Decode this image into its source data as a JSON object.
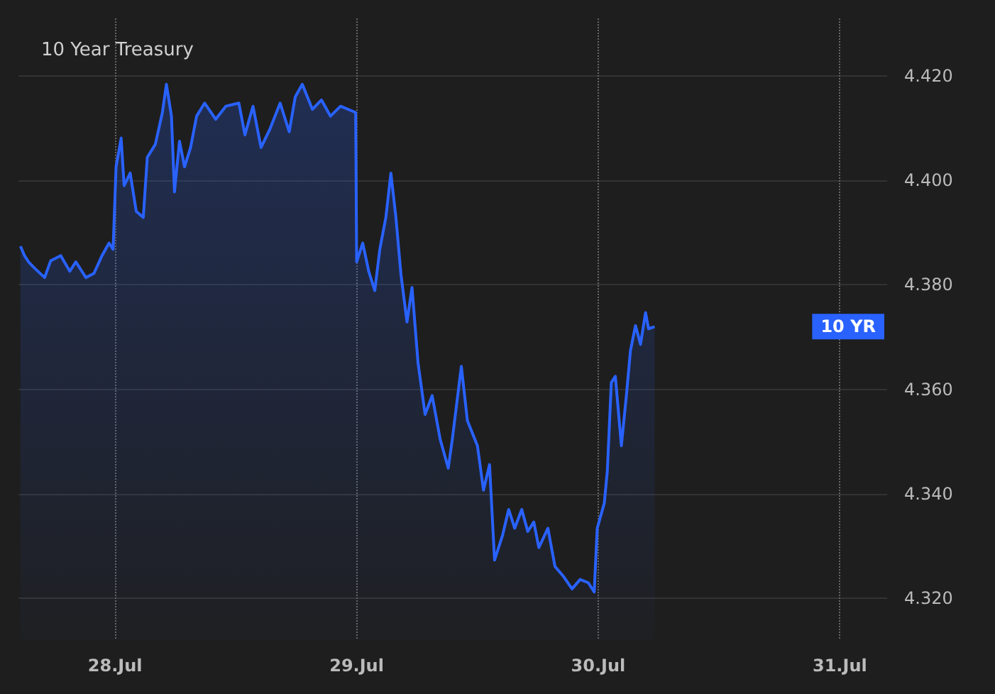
{
  "chart_data": {
    "type": "area",
    "title": "10 Year Treasury",
    "x": [
      "--07-27T14:36",
      "--07-27T15:00",
      "--07-27T15:24",
      "--07-27T16:00",
      "--07-27T17:00",
      "--07-27T17:36",
      "--07-27T18:36",
      "--07-27T19:30",
      "--07-27T20:06",
      "--07-27T21:06",
      "--07-27T21:54",
      "--07-27T22:42",
      "--07-27T23:24",
      "--07-27T23:48",
      "--07-28T00:06",
      "--07-28T00:36",
      "--07-28T00:54",
      "--07-28T01:30",
      "--07-28T02:06",
      "--07-28T02:48",
      "--07-28T03:12",
      "--07-28T04:00",
      "--07-28T04:42",
      "--07-28T05:06",
      "--07-28T05:36",
      "--07-28T05:54",
      "--07-28T06:24",
      "--07-28T06:54",
      "--07-28T07:30",
      "--07-28T08:06",
      "--07-28T08:54",
      "--07-28T10:00",
      "--07-28T11:00",
      "--07-28T12:18",
      "--07-28T12:54",
      "--07-28T13:42",
      "--07-28T14:30",
      "--07-28T15:24",
      "--07-28T16:24",
      "--07-28T17:18",
      "--07-28T17:54",
      "--07-28T18:36",
      "--07-28T19:36",
      "--07-28T20:30",
      "--07-28T21:24",
      "--07-28T22:24",
      "--07-28T23:54",
      "--07-29T00:00",
      "--07-29T00:36",
      "--07-29T01:12",
      "--07-29T01:48",
      "--07-29T02:18",
      "--07-29T02:54",
      "--07-29T03:24",
      "--07-29T03:54",
      "--07-29T04:24",
      "--07-29T05:00",
      "--07-29T05:30",
      "--07-29T06:06",
      "--07-29T06:48",
      "--07-29T07:30",
      "--07-29T08:18",
      "--07-29T09:06",
      "--07-29T09:30",
      "--07-29T10:24",
      "--07-29T11:00",
      "--07-29T12:00",
      "--07-29T12:36",
      "--07-29T13:12",
      "--07-29T13:42",
      "--07-29T14:30",
      "--07-29T15:06",
      "--07-29T15:42",
      "--07-29T16:24",
      "--07-29T17:00",
      "--07-29T17:36",
      "--07-29T18:06",
      "--07-29T19:00",
      "--07-29T19:42",
      "--07-29T20:30",
      "--07-29T21:24",
      "--07-29T22:12",
      "--07-29T23:00",
      "--07-29T23:36",
      "--07-29T23:54",
      "--07-30T00:36",
      "--07-30T00:54",
      "--07-30T01:18",
      "--07-30T01:42",
      "--07-30T02:18",
      "--07-30T02:48",
      "--07-30T03:12",
      "--07-30T03:42",
      "--07-30T04:12",
      "--07-30T04:42",
      "--07-30T05:00",
      "--07-30T05:36"
    ],
    "series": [
      {
        "color": "#2962ff",
        "values": [
          4.3874,
          4.3856,
          4.3844,
          4.3832,
          4.3814,
          4.3846,
          4.3856,
          4.3826,
          4.3844,
          4.3814,
          4.3822,
          4.3856,
          4.388,
          4.3868,
          4.4026,
          4.4081,
          4.399,
          4.4014,
          4.3941,
          4.3929,
          4.4044,
          4.4069,
          4.413,
          4.4184,
          4.4123,
          4.3978,
          4.4075,
          4.4026,
          4.4063,
          4.4123,
          4.4148,
          4.4117,
          4.4142,
          4.4148,
          4.4087,
          4.4142,
          4.4063,
          4.4099,
          4.4148,
          4.4093,
          4.416,
          4.4184,
          4.4136,
          4.4154,
          4.4123,
          4.4142,
          4.413,
          4.3844,
          4.388,
          4.3826,
          4.3789,
          4.3868,
          4.3929,
          4.4014,
          4.3929,
          4.382,
          4.3729,
          4.3795,
          4.365,
          4.3552,
          4.3588,
          4.3504,
          4.3449,
          4.3504,
          4.3644,
          4.354,
          4.3492,
          4.3407,
          4.3456,
          4.3273,
          4.3321,
          4.337,
          4.3334,
          4.337,
          4.3328,
          4.3346,
          4.3297,
          4.3334,
          4.3261,
          4.3243,
          4.3218,
          4.3236,
          4.323,
          4.3212,
          4.3334,
          4.3382,
          4.3443,
          4.3613,
          4.3625,
          4.3492,
          4.3589,
          4.3674,
          4.3722,
          4.3686,
          4.3747,
          4.3716,
          4.372
        ]
      }
    ],
    "xlim": [
      "--07-27T14:24",
      "--07-31T04:42"
    ],
    "xticks": [
      {
        "value": "--07-28",
        "label": "28.Jul"
      },
      {
        "value": "--07-29",
        "label": "29.Jul"
      },
      {
        "value": "--07-30",
        "label": "30.Jul"
      },
      {
        "value": "--07-31",
        "label": "31.Jul"
      }
    ],
    "ylim": [
      4.312,
      4.431
    ],
    "yticks": [
      {
        "value": 4.32,
        "label": "4.320"
      },
      {
        "value": 4.34,
        "label": "4.340"
      },
      {
        "value": 4.36,
        "label": "4.360"
      },
      {
        "value": 4.38,
        "label": "4.380"
      },
      {
        "value": 4.4,
        "label": "4.400"
      },
      {
        "value": 4.42,
        "label": "4.420"
      }
    ],
    "annotations": [
      "10 YR"
    ],
    "grid": true,
    "marker": "none",
    "line_style": "solid"
  }
}
